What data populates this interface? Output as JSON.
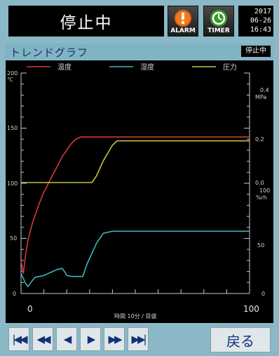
{
  "header": {
    "status": "停止中",
    "alarm_label": "ALARM",
    "timer_label": "TIMER",
    "date_line1": "2017",
    "date_line2": "06-26",
    "date_line3": "16:43"
  },
  "titlebar": {
    "title": "トレンドグラフ",
    "status": "停止中"
  },
  "legend": [
    {
      "label": "温度",
      "color": "#d23a3a"
    },
    {
      "label": "湿度",
      "color": "#3bb5bd"
    },
    {
      "label": "圧力",
      "color": "#c9c33a"
    }
  ],
  "axis": {
    "left_top": "200",
    "left_unit": "℃",
    "left_150": "150",
    "left_100": "100",
    "left_50": "50",
    "left_0": "0",
    "right_p_top": "0.4",
    "right_p_unit": "MPa",
    "right_p_mid": "0.2",
    "right_p_bottom": "0.0",
    "right_h_top": "100",
    "right_h_unit": "%rh",
    "right_h_mid": "50",
    "right_h_bottom": "0",
    "x_start": "0",
    "x_end": "100",
    "x_label": "時間 10分 / 目盛"
  },
  "nav": {
    "first": "|◀◀",
    "prev_fast": "◀◀",
    "prev": "◀",
    "next": "▶",
    "next_fast": "▶▶",
    "last": "▶▶|",
    "back": "戻る"
  },
  "chart_data": {
    "type": "line",
    "x_range": [
      0,
      100
    ],
    "series": [
      {
        "name": "温度",
        "axis": "left",
        "ylim": [
          0,
          200
        ],
        "x": [
          0,
          1,
          2,
          3,
          4,
          5,
          6,
          8,
          10,
          12,
          14,
          16,
          18,
          20,
          22,
          24,
          26,
          28,
          100
        ],
        "y": [
          30,
          18,
          35,
          48,
          56,
          64,
          70,
          82,
          92,
          100,
          108,
          116,
          124,
          130,
          136,
          140,
          142,
          142,
          142
        ]
      },
      {
        "name": "湿度",
        "axis": "right-bottom",
        "ylim": [
          0,
          100
        ],
        "x": [
          0,
          2,
          3,
          4,
          6,
          8,
          10,
          12,
          14,
          16,
          18,
          19,
          20,
          22,
          24,
          25,
          27,
          29,
          33,
          36,
          40,
          100
        ],
        "y": [
          20,
          10,
          7,
          10,
          16,
          17,
          18,
          20,
          22,
          24,
          25,
          22,
          18,
          17,
          17,
          17,
          17,
          30,
          50,
          60,
          62,
          62
        ]
      },
      {
        "name": "圧力",
        "axis": "right-top",
        "ylim": [
          0,
          0.4
        ],
        "x": [
          0,
          31,
          33,
          36,
          40,
          42,
          44,
          100
        ],
        "y": [
          0.0,
          0.0,
          0.03,
          0.1,
          0.17,
          0.19,
          0.19,
          0.19
        ]
      }
    ]
  }
}
